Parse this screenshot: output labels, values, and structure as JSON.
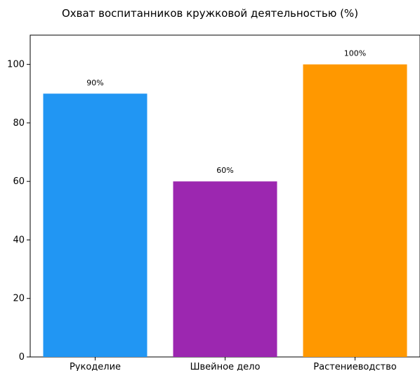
{
  "chart_data": {
    "type": "bar",
    "title": "Охват воспитанников кружковой деятельностью (%)",
    "xlabel": "",
    "ylabel": "",
    "categories": [
      "Рукоделие",
      "Швейное дело",
      "Растениеводство"
    ],
    "values": [
      90,
      60,
      100
    ],
    "data_labels": [
      "90%",
      "60%",
      "100%"
    ],
    "colors": [
      "#2196F3",
      "#9C27B0",
      "#FF9800"
    ],
    "ylim": [
      0,
      110
    ],
    "yticks": [
      0,
      20,
      40,
      60,
      80,
      100
    ],
    "grid": false,
    "legend": "none"
  }
}
